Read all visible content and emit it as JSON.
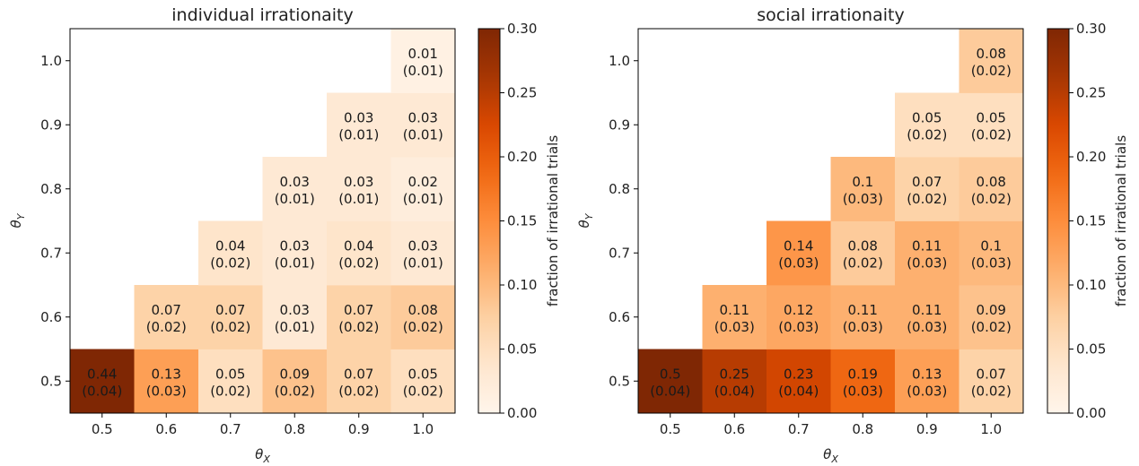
{
  "chart_data": [
    {
      "type": "heatmap",
      "title": "individual irrationaity",
      "xlabel": "θ",
      "xlabel_sub": "X",
      "ylabel": "θ",
      "ylabel_sub": "Y",
      "x_categories": [
        "0.5",
        "0.6",
        "0.7",
        "0.8",
        "0.9",
        "1.0"
      ],
      "y_categories": [
        "0.5",
        "0.6",
        "0.7",
        "0.8",
        "0.9",
        "1.0"
      ],
      "colorbar": {
        "label": "fraction of irrational trials",
        "range": [
          0.0,
          0.3
        ],
        "ticks": [
          "0.00",
          "0.05",
          "0.10",
          "0.15",
          "0.20",
          "0.25",
          "0.30"
        ],
        "colormap": "Oranges"
      },
      "cells": [
        {
          "x": "0.5",
          "y": "0.5",
          "value": "0.44",
          "std": "(0.04)"
        },
        {
          "x": "0.6",
          "y": "0.5",
          "value": "0.13",
          "std": "(0.03)"
        },
        {
          "x": "0.7",
          "y": "0.5",
          "value": "0.05",
          "std": "(0.02)"
        },
        {
          "x": "0.8",
          "y": "0.5",
          "value": "0.09",
          "std": "(0.02)"
        },
        {
          "x": "0.9",
          "y": "0.5",
          "value": "0.07",
          "std": "(0.02)"
        },
        {
          "x": "1.0",
          "y": "0.5",
          "value": "0.05",
          "std": "(0.02)"
        },
        {
          "x": "0.6",
          "y": "0.6",
          "value": "0.07",
          "std": "(0.02)"
        },
        {
          "x": "0.7",
          "y": "0.6",
          "value": "0.07",
          "std": "(0.02)"
        },
        {
          "x": "0.8",
          "y": "0.6",
          "value": "0.03",
          "std": "(0.01)"
        },
        {
          "x": "0.9",
          "y": "0.6",
          "value": "0.07",
          "std": "(0.02)"
        },
        {
          "x": "1.0",
          "y": "0.6",
          "value": "0.08",
          "std": "(0.02)"
        },
        {
          "x": "0.7",
          "y": "0.7",
          "value": "0.04",
          "std": "(0.02)"
        },
        {
          "x": "0.8",
          "y": "0.7",
          "value": "0.03",
          "std": "(0.01)"
        },
        {
          "x": "0.9",
          "y": "0.7",
          "value": "0.04",
          "std": "(0.02)"
        },
        {
          "x": "1.0",
          "y": "0.7",
          "value": "0.03",
          "std": "(0.01)"
        },
        {
          "x": "0.8",
          "y": "0.8",
          "value": "0.03",
          "std": "(0.01)"
        },
        {
          "x": "0.9",
          "y": "0.8",
          "value": "0.03",
          "std": "(0.01)"
        },
        {
          "x": "1.0",
          "y": "0.8",
          "value": "0.02",
          "std": "(0.01)"
        },
        {
          "x": "0.9",
          "y": "0.9",
          "value": "0.03",
          "std": "(0.01)"
        },
        {
          "x": "1.0",
          "y": "0.9",
          "value": "0.03",
          "std": "(0.01)"
        },
        {
          "x": "1.0",
          "y": "1.0",
          "value": "0.01",
          "std": "(0.01)"
        }
      ]
    },
    {
      "type": "heatmap",
      "title": "social irrationaity",
      "xlabel": "θ",
      "xlabel_sub": "X",
      "ylabel": "θ",
      "ylabel_sub": "Y",
      "x_categories": [
        "0.5",
        "0.6",
        "0.7",
        "0.8",
        "0.9",
        "1.0"
      ],
      "y_categories": [
        "0.5",
        "0.6",
        "0.7",
        "0.8",
        "0.9",
        "1.0"
      ],
      "colorbar": {
        "label": "fraction of irrational trials",
        "range": [
          0.0,
          0.3
        ],
        "ticks": [
          "0.00",
          "0.05",
          "0.10",
          "0.15",
          "0.20",
          "0.25",
          "0.30"
        ],
        "colormap": "Oranges"
      },
      "cells": [
        {
          "x": "0.5",
          "y": "0.5",
          "value": "0.5",
          "std": "(0.04)"
        },
        {
          "x": "0.6",
          "y": "0.5",
          "value": "0.25",
          "std": "(0.04)"
        },
        {
          "x": "0.7",
          "y": "0.5",
          "value": "0.23",
          "std": "(0.04)"
        },
        {
          "x": "0.8",
          "y": "0.5",
          "value": "0.19",
          "std": "(0.03)"
        },
        {
          "x": "0.9",
          "y": "0.5",
          "value": "0.13",
          "std": "(0.03)"
        },
        {
          "x": "1.0",
          "y": "0.5",
          "value": "0.07",
          "std": "(0.02)"
        },
        {
          "x": "0.6",
          "y": "0.6",
          "value": "0.11",
          "std": "(0.03)"
        },
        {
          "x": "0.7",
          "y": "0.6",
          "value": "0.12",
          "std": "(0.03)"
        },
        {
          "x": "0.8",
          "y": "0.6",
          "value": "0.11",
          "std": "(0.03)"
        },
        {
          "x": "0.9",
          "y": "0.6",
          "value": "0.11",
          "std": "(0.03)"
        },
        {
          "x": "1.0",
          "y": "0.6",
          "value": "0.09",
          "std": "(0.02)"
        },
        {
          "x": "0.7",
          "y": "0.7",
          "value": "0.14",
          "std": "(0.03)"
        },
        {
          "x": "0.8",
          "y": "0.7",
          "value": "0.08",
          "std": "(0.02)"
        },
        {
          "x": "0.9",
          "y": "0.7",
          "value": "0.11",
          "std": "(0.03)"
        },
        {
          "x": "1.0",
          "y": "0.7",
          "value": "0.1",
          "std": "(0.03)"
        },
        {
          "x": "0.8",
          "y": "0.8",
          "value": "0.1",
          "std": "(0.03)"
        },
        {
          "x": "0.9",
          "y": "0.8",
          "value": "0.07",
          "std": "(0.02)"
        },
        {
          "x": "1.0",
          "y": "0.8",
          "value": "0.08",
          "std": "(0.02)"
        },
        {
          "x": "0.9",
          "y": "0.9",
          "value": "0.05",
          "std": "(0.02)"
        },
        {
          "x": "1.0",
          "y": "0.9",
          "value": "0.05",
          "std": "(0.02)"
        },
        {
          "x": "1.0",
          "y": "1.0",
          "value": "0.08",
          "std": "(0.02)"
        }
      ]
    }
  ]
}
